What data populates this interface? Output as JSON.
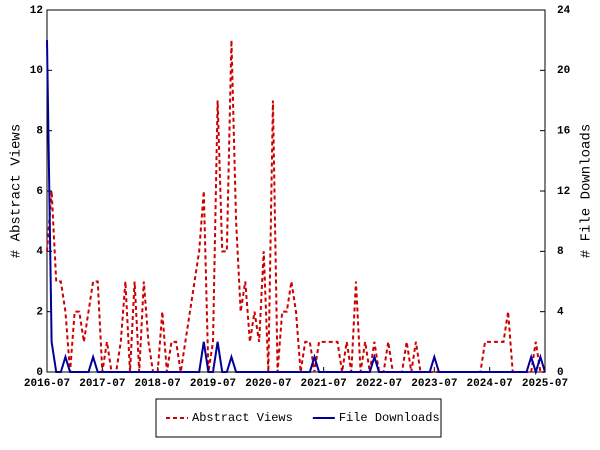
{
  "chart_data": {
    "type": "line",
    "x": [
      "2016-07",
      "2016-08",
      "2016-09",
      "2016-10",
      "2016-11",
      "2016-12",
      "2017-01",
      "2017-02",
      "2017-03",
      "2017-04",
      "2017-05",
      "2017-06",
      "2017-07",
      "2017-08",
      "2017-09",
      "2017-10",
      "2017-11",
      "2017-12",
      "2018-01",
      "2018-02",
      "2018-03",
      "2018-04",
      "2018-05",
      "2018-06",
      "2018-07",
      "2018-08",
      "2018-09",
      "2018-10",
      "2018-11",
      "2018-12",
      "2019-01",
      "2019-02",
      "2019-03",
      "2019-04",
      "2019-05",
      "2019-06",
      "2019-07",
      "2019-08",
      "2019-09",
      "2019-10",
      "2019-11",
      "2019-12",
      "2020-01",
      "2020-02",
      "2020-03",
      "2020-04",
      "2020-05",
      "2020-06",
      "2020-07",
      "2020-08",
      "2020-09",
      "2020-10",
      "2020-11",
      "2020-12",
      "2021-01",
      "2021-02",
      "2021-03",
      "2021-04",
      "2021-05",
      "2021-06",
      "2021-07",
      "2021-08",
      "2021-09",
      "2021-10",
      "2021-11",
      "2021-12",
      "2022-01",
      "2022-02",
      "2022-03",
      "2022-04",
      "2022-05",
      "2022-06",
      "2022-07",
      "2022-08",
      "2022-09",
      "2022-10",
      "2022-11",
      "2022-12",
      "2023-01",
      "2023-02",
      "2023-03",
      "2023-04",
      "2023-05",
      "2023-06",
      "2023-07",
      "2023-08",
      "2023-09",
      "2023-10",
      "2023-11",
      "2023-12",
      "2024-01",
      "2024-02",
      "2024-03",
      "2024-04",
      "2024-05",
      "2024-06",
      "2024-07",
      "2024-08",
      "2024-09",
      "2024-10",
      "2024-11",
      "2024-12",
      "2025-01",
      "2025-02",
      "2025-03",
      "2025-04",
      "2025-05",
      "2025-06",
      "2025-07"
    ],
    "xticks": [
      "2016-07",
      "2017-07",
      "2018-07",
      "2019-07",
      "2020-07",
      "2021-07",
      "2022-07",
      "2023-07",
      "2024-07",
      "2025-07"
    ],
    "ylabel": "# Abstract Views",
    "y2label": "# File Downloads",
    "ylim": [
      0,
      12
    ],
    "yticks": [
      0,
      2,
      4,
      6,
      8,
      10,
      12
    ],
    "y2lim": [
      0,
      24
    ],
    "y2ticks": [
      0,
      4,
      8,
      12,
      16,
      20,
      24
    ],
    "legend": "bottom",
    "series": [
      {
        "name": "Abstract Views",
        "color": "#cc0000",
        "style": "dashed",
        "axis": "y",
        "values": [
          4,
          6,
          3,
          3,
          2,
          0,
          2,
          2,
          1,
          2,
          3,
          3,
          0,
          1,
          0,
          0,
          1,
          3,
          0,
          3,
          0,
          3,
          1,
          0,
          0,
          2,
          0,
          1,
          1,
          0,
          1,
          2,
          3,
          4,
          6,
          0,
          1,
          9,
          4,
          4,
          11,
          5,
          2,
          3,
          1,
          2,
          1,
          4,
          0,
          9,
          0,
          2,
          2,
          3,
          2,
          0,
          1,
          1,
          0,
          1,
          1,
          1,
          1,
          1,
          0,
          1,
          0,
          3,
          0,
          1,
          0,
          1,
          0,
          0,
          1,
          0,
          0,
          0,
          1,
          0,
          1,
          0,
          0,
          0,
          0,
          0,
          0,
          0,
          0,
          0,
          0,
          0,
          0,
          0,
          0,
          1,
          1,
          1,
          1,
          1,
          2,
          0,
          0,
          0,
          0,
          0,
          1,
          0,
          0
        ]
      },
      {
        "name": "File Downloads",
        "color": "#000099",
        "style": "solid",
        "axis": "y2",
        "values": [
          22,
          2,
          0,
          0,
          1,
          0,
          0,
          0,
          0,
          0,
          1,
          0,
          0,
          0,
          0,
          0,
          0,
          0,
          0,
          0,
          0,
          0,
          0,
          0,
          0,
          0,
          0,
          0,
          0,
          0,
          0,
          0,
          0,
          0,
          2,
          0,
          0,
          2,
          0,
          0,
          1,
          0,
          0,
          0,
          0,
          0,
          0,
          0,
          0,
          0,
          0,
          0,
          0,
          0,
          0,
          0,
          0,
          0,
          1,
          0,
          0,
          0,
          0,
          0,
          0,
          0,
          0,
          0,
          0,
          0,
          0,
          1,
          0,
          0,
          0,
          0,
          0,
          0,
          0,
          0,
          0,
          0,
          0,
          0,
          1,
          0,
          0,
          0,
          0,
          0,
          0,
          0,
          0,
          0,
          0,
          0,
          0,
          0,
          0,
          0,
          0,
          0,
          0,
          0,
          0,
          1,
          0,
          1,
          0
        ]
      }
    ]
  }
}
